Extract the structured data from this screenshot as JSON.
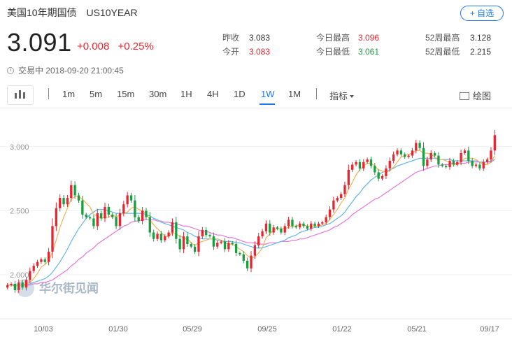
{
  "header": {
    "name": "美国10年期国债",
    "code": "US10YEAR",
    "add_button": "+ 自选"
  },
  "quote": {
    "price": "3.091",
    "change": "+0.008",
    "change_pct": "+0.25%"
  },
  "stats": {
    "prev_close_label": "昨收",
    "prev_close": "3.083",
    "open_label": "今开",
    "open": "3.083",
    "high_label": "今日最高",
    "high": "3.096",
    "low_label": "今日最低",
    "low": "3.061",
    "high52_label": "52周最高",
    "high52": "3.128",
    "low52_label": "52周最低",
    "low52": "2.215"
  },
  "status": {
    "text": "交易中 2018-09-20 21:00:45"
  },
  "toolbar": {
    "periods": [
      "1m",
      "5m",
      "15m",
      "30m",
      "1H",
      "4H",
      "1D",
      "1W",
      "1M"
    ],
    "active_period": "1W",
    "indicator_label": "指标",
    "draw_label": "绘图"
  },
  "watermark": "华尔街见闻",
  "colors": {
    "up": "#e8262f",
    "down": "#1a9e3f",
    "accent": "#1e78e6",
    "ma_short": "#f0b45a",
    "ma_mid": "#63b7e6",
    "ma_long": "#e777d9"
  },
  "chart_data": {
    "type": "candlestick",
    "x_tick_labels": [
      "10/03",
      "01/30",
      "05/29",
      "09/25",
      "01/22",
      "05/21",
      "09/17"
    ],
    "y_tick_labels": [
      "3.000",
      "2.500",
      "2.000"
    ],
    "ylim": [
      1.7,
      3.25
    ],
    "close": [
      1.92,
      1.93,
      1.88,
      1.94,
      1.9,
      1.96,
      2.03,
      2.07,
      2.1,
      2.12,
      2.1,
      2.18,
      2.38,
      2.52,
      2.6,
      2.55,
      2.6,
      2.7,
      2.62,
      2.58,
      2.47,
      2.45,
      2.44,
      2.38,
      2.48,
      2.44,
      2.53,
      2.47,
      2.45,
      2.38,
      2.48,
      2.55,
      2.62,
      2.58,
      2.45,
      2.42,
      2.5,
      2.45,
      2.33,
      2.28,
      2.32,
      2.27,
      2.3,
      2.33,
      2.41,
      2.28,
      2.2,
      2.3,
      2.24,
      2.22,
      2.18,
      2.3,
      2.35,
      2.31,
      2.3,
      2.22,
      2.25,
      2.26,
      2.2,
      2.25,
      2.24,
      2.17,
      2.16,
      2.11,
      2.05,
      2.15,
      2.23,
      2.3,
      2.34,
      2.4,
      2.33,
      2.37,
      2.36,
      2.33,
      2.38,
      2.43,
      2.38,
      2.37,
      2.4,
      2.38,
      2.36,
      2.4,
      2.38,
      2.4,
      2.41,
      2.45,
      2.51,
      2.58,
      2.6,
      2.63,
      2.7,
      2.82,
      2.86,
      2.88,
      2.83,
      2.88,
      2.9,
      2.85,
      2.8,
      2.75,
      2.77,
      2.83,
      2.89,
      2.94,
      2.97,
      2.94,
      2.92,
      2.93,
      2.97,
      3.03,
      2.99,
      2.85,
      2.9,
      2.95,
      2.93,
      2.86,
      2.85,
      2.84,
      2.89,
      2.86,
      2.88,
      2.95,
      2.97,
      2.89,
      2.85,
      2.86,
      2.83,
      2.88,
      2.9,
      2.97,
      3.09
    ],
    "ma_short": [
      1.92,
      1.92,
      1.91,
      1.92,
      1.92,
      1.93,
      1.94,
      1.97,
      2.01,
      2.06,
      2.08,
      2.11,
      2.18,
      2.27,
      2.37,
      2.45,
      2.52,
      2.59,
      2.61,
      2.61,
      2.59,
      2.56,
      2.53,
      2.47,
      2.46,
      2.44,
      2.45,
      2.45,
      2.47,
      2.45,
      2.47,
      2.48,
      2.49,
      2.52,
      2.53,
      2.51,
      2.5,
      2.48,
      2.43,
      2.39,
      2.36,
      2.33,
      2.3,
      2.3,
      2.33,
      2.32,
      2.3,
      2.29,
      2.28,
      2.25,
      2.23,
      2.25,
      2.26,
      2.27,
      2.28,
      2.28,
      2.28,
      2.27,
      2.25,
      2.24,
      2.24,
      2.22,
      2.2,
      2.18,
      2.15,
      2.13,
      2.14,
      2.17,
      2.21,
      2.29,
      2.32,
      2.35,
      2.36,
      2.36,
      2.36,
      2.37,
      2.38,
      2.38,
      2.39,
      2.39,
      2.38,
      2.38,
      2.38,
      2.38,
      2.39,
      2.4,
      2.43,
      2.47,
      2.51,
      2.56,
      2.6,
      2.67,
      2.72,
      2.78,
      2.82,
      2.85,
      2.87,
      2.87,
      2.85,
      2.82,
      2.81,
      2.8,
      2.81,
      2.84,
      2.88,
      2.92,
      2.93,
      2.94,
      2.95,
      2.97,
      2.97,
      2.95,
      2.95,
      2.94,
      2.92,
      2.9,
      2.9,
      2.89,
      2.88,
      2.86,
      2.86,
      2.88,
      2.91,
      2.91,
      2.91,
      2.9,
      2.88,
      2.86,
      2.86,
      2.88,
      2.93
    ],
    "ma_mid": [
      1.92,
      1.92,
      1.92,
      1.92,
      1.92,
      1.92,
      1.93,
      1.94,
      1.95,
      1.96,
      1.97,
      1.99,
      2.02,
      2.06,
      2.1,
      2.15,
      2.2,
      2.26,
      2.31,
      2.36,
      2.4,
      2.44,
      2.47,
      2.49,
      2.51,
      2.51,
      2.51,
      2.5,
      2.49,
      2.48,
      2.48,
      2.48,
      2.48,
      2.48,
      2.48,
      2.48,
      2.48,
      2.47,
      2.46,
      2.44,
      2.43,
      2.41,
      2.4,
      2.39,
      2.38,
      2.37,
      2.36,
      2.35,
      2.33,
      2.32,
      2.3,
      2.29,
      2.28,
      2.28,
      2.28,
      2.28,
      2.27,
      2.27,
      2.26,
      2.26,
      2.26,
      2.25,
      2.25,
      2.24,
      2.23,
      2.22,
      2.21,
      2.21,
      2.21,
      2.22,
      2.23,
      2.24,
      2.25,
      2.26,
      2.27,
      2.29,
      2.3,
      2.31,
      2.33,
      2.34,
      2.35,
      2.36,
      2.37,
      2.37,
      2.38,
      2.39,
      2.4,
      2.42,
      2.44,
      2.46,
      2.49,
      2.53,
      2.57,
      2.61,
      2.64,
      2.68,
      2.71,
      2.74,
      2.76,
      2.78,
      2.8,
      2.81,
      2.82,
      2.83,
      2.85,
      2.86,
      2.87,
      2.88,
      2.89,
      2.9,
      2.91,
      2.91,
      2.91,
      2.91,
      2.91,
      2.9,
      2.9,
      2.9,
      2.9,
      2.89,
      2.89,
      2.89,
      2.89,
      2.89,
      2.89,
      2.89,
      2.88,
      2.88,
      2.88,
      2.88,
      2.9
    ],
    "ma_long": [
      1.92,
      1.92,
      1.92,
      1.92,
      1.92,
      1.92,
      1.92,
      1.93,
      1.93,
      1.94,
      1.94,
      1.95,
      1.96,
      1.98,
      2.0,
      2.02,
      2.04,
      2.07,
      2.09,
      2.12,
      2.14,
      2.17,
      2.19,
      2.21,
      2.24,
      2.26,
      2.28,
      2.3,
      2.32,
      2.34,
      2.36,
      2.38,
      2.39,
      2.41,
      2.42,
      2.42,
      2.43,
      2.43,
      2.43,
      2.43,
      2.42,
      2.42,
      2.41,
      2.41,
      2.4,
      2.4,
      2.39,
      2.38,
      2.38,
      2.37,
      2.36,
      2.35,
      2.34,
      2.34,
      2.33,
      2.32,
      2.31,
      2.31,
      2.3,
      2.29,
      2.29,
      2.28,
      2.27,
      2.26,
      2.25,
      2.25,
      2.25,
      2.24,
      2.24,
      2.24,
      2.25,
      2.25,
      2.25,
      2.26,
      2.26,
      2.26,
      2.27,
      2.27,
      2.28,
      2.28,
      2.29,
      2.3,
      2.31,
      2.32,
      2.33,
      2.34,
      2.35,
      2.37,
      2.38,
      2.4,
      2.42,
      2.44,
      2.47,
      2.49,
      2.51,
      2.53,
      2.55,
      2.57,
      2.59,
      2.6,
      2.62,
      2.64,
      2.66,
      2.68,
      2.7,
      2.72,
      2.74,
      2.76,
      2.78,
      2.8,
      2.81,
      2.82,
      2.83,
      2.84,
      2.85,
      2.85,
      2.86,
      2.86,
      2.86,
      2.87,
      2.87,
      2.87,
      2.87,
      2.88,
      2.88,
      2.88,
      2.88,
      2.88,
      2.88,
      2.89,
      2.9
    ]
  }
}
